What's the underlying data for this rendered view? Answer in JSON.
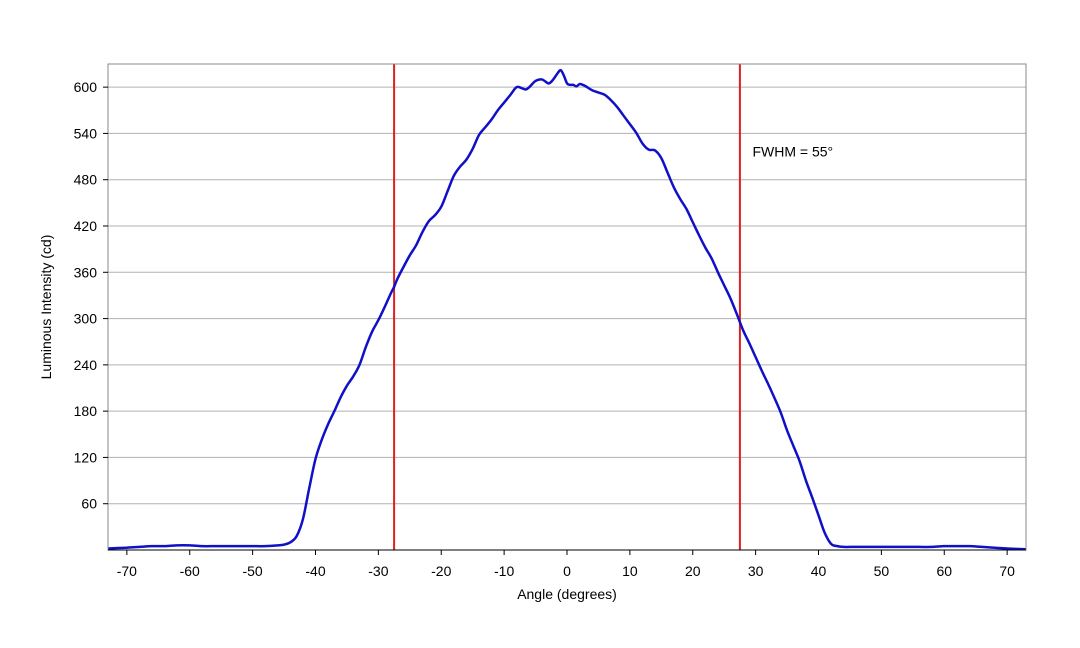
{
  "chart_data": {
    "type": "line",
    "title": "",
    "xlabel": "Angle (degrees)",
    "ylabel": "Luminous Intensity (cd)",
    "xlim": [
      -73,
      73
    ],
    "ylim": [
      0,
      630
    ],
    "x_ticks": [
      -70,
      -60,
      -50,
      -40,
      -30,
      -20,
      -10,
      0,
      10,
      20,
      30,
      40,
      50,
      60,
      70
    ],
    "y_ticks": [
      60,
      120,
      180,
      240,
      300,
      360,
      420,
      480,
      540,
      600
    ],
    "grid": "horizontal",
    "colors": {
      "series": "#1010c8",
      "markers": "#e02020",
      "grid": "#b0b0b0",
      "frame": "#888888"
    },
    "series": [
      {
        "x": [
          -73,
          -70,
          -68,
          -66,
          -64,
          -62,
          -60,
          -58,
          -56,
          -54,
          -52,
          -50,
          -48,
          -46,
          -45,
          -44,
          -43,
          -42,
          -41,
          -40,
          -39,
          -38,
          -37,
          -36,
          -35,
          -34,
          -33,
          -32,
          -31,
          -30,
          -29,
          -28,
          -27.5,
          -27,
          -26,
          -25,
          -24,
          -23,
          -22,
          -21,
          -20,
          -19,
          -18,
          -17,
          -16,
          -15,
          -14,
          -13,
          -12,
          -11,
          -10,
          -9,
          -8,
          -7,
          -6.5,
          -6,
          -5,
          -4,
          -3,
          -2.5,
          -2,
          -1.5,
          -1,
          -0.5,
          0,
          0.5,
          1,
          1.5,
          2,
          2.5,
          3,
          4,
          5,
          6,
          7,
          8,
          9,
          10,
          11,
          12,
          13,
          14,
          15,
          16,
          17,
          18,
          19,
          20,
          21,
          22,
          23,
          24,
          25,
          26,
          27,
          28,
          29,
          30,
          31,
          32,
          33,
          34,
          35,
          36,
          37,
          38,
          39,
          40,
          41,
          42,
          43,
          44,
          45,
          46,
          48,
          50,
          52,
          54,
          56,
          58,
          60,
          62,
          64,
          66,
          68,
          70,
          73
        ],
        "y": [
          2,
          3,
          4,
          5,
          5,
          6,
          6,
          5,
          5,
          5,
          5,
          5,
          5,
          6,
          7,
          10,
          18,
          40,
          80,
          118,
          143,
          163,
          180,
          198,
          213,
          225,
          240,
          263,
          283,
          298,
          315,
          333,
          341,
          351,
          367,
          382,
          395,
          412,
          426,
          434,
          445,
          465,
          485,
          497,
          506,
          520,
          538,
          548,
          558,
          570,
          580,
          590,
          600,
          598,
          597,
          600,
          608,
          610,
          605,
          607,
          612,
          618,
          622,
          615,
          605,
          603,
          603,
          601,
          604,
          603,
          601,
          596,
          593,
          590,
          583,
          574,
          563,
          552,
          541,
          527,
          519,
          518,
          508,
          489,
          470,
          455,
          442,
          425,
          408,
          392,
          378,
          360,
          343,
          326,
          306,
          285,
          268,
          250,
          232,
          215,
          197,
          178,
          155,
          135,
          115,
          90,
          68,
          45,
          22,
          8,
          5,
          4,
          4,
          4,
          4,
          4,
          4,
          4,
          4,
          4,
          5,
          5,
          5,
          4,
          3,
          2,
          1
        ]
      }
    ],
    "vlines": [
      -27.5,
      27.5
    ],
    "annotations": [
      {
        "text": "FWHM = 55°",
        "x": 29.5,
        "y": 510
      }
    ]
  }
}
